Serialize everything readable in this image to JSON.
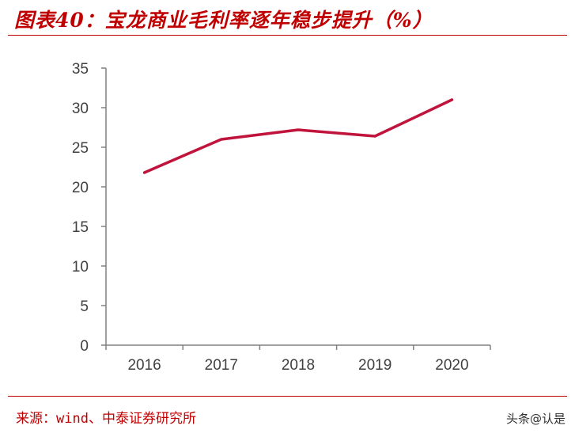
{
  "page": {
    "title": "图表40：宝龙商业毛利率逐年稳步提升（%）",
    "source": "来源：wind、中泰证券研究所",
    "watermark": "头条@认是"
  },
  "colors": {
    "accent": "#c00000",
    "line": "#c0143c",
    "axis": "#808080",
    "text": "#404040"
  },
  "chart_data": {
    "type": "line",
    "title": "图表40：宝龙商业毛利率逐年稳步提升（%）",
    "categories": [
      "2016",
      "2017",
      "2018",
      "2019",
      "2020"
    ],
    "series": [
      {
        "values": [
          21.8,
          26.0,
          27.2,
          26.4,
          31.0
        ]
      }
    ],
    "ylim": [
      0,
      35
    ],
    "yticks": [
      0,
      5,
      10,
      15,
      20,
      25,
      30,
      35
    ],
    "xlabel": "",
    "ylabel": "",
    "grid": false,
    "legend": "none"
  }
}
